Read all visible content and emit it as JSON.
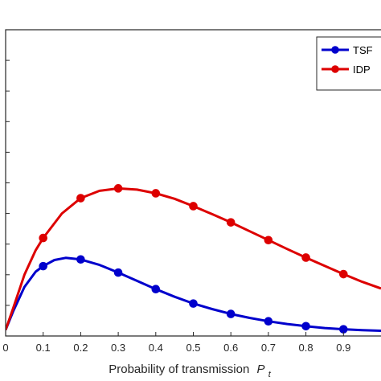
{
  "chart_data": {
    "type": "line",
    "title": "",
    "xlabel": "Probability of transmission",
    "xlabel_symbol": "P",
    "xlabel_subscript": "t",
    "ylabel": "",
    "xlim": [
      0,
      1
    ],
    "ylim": [
      0,
      1
    ],
    "x_ticks": [
      0,
      0.1,
      0.2,
      0.3,
      0.4,
      0.5,
      0.6,
      0.7,
      0.8,
      0.9
    ],
    "x_tick_labels": [
      "0",
      "0.1",
      "0.2",
      "0.3",
      "0.4",
      "0.5",
      "0.6",
      "0.7",
      "0.8",
      "0.9"
    ],
    "y_ticks": [
      0,
      0.1,
      0.2,
      0.3,
      0.4,
      0.5,
      0.6,
      0.7,
      0.8,
      0.9
    ],
    "grid": false,
    "legend_position": "top-right",
    "series": [
      {
        "name": "TSF",
        "color": "#0000cc",
        "marker": "circle",
        "curve": [
          [
            0,
            0.02
          ],
          [
            0.02,
            0.08
          ],
          [
            0.05,
            0.16
          ],
          [
            0.08,
            0.21
          ],
          [
            0.1,
            0.228
          ],
          [
            0.13,
            0.248
          ],
          [
            0.16,
            0.255
          ],
          [
            0.2,
            0.25
          ],
          [
            0.25,
            0.232
          ],
          [
            0.3,
            0.207
          ],
          [
            0.35,
            0.18
          ],
          [
            0.4,
            0.153
          ],
          [
            0.45,
            0.128
          ],
          [
            0.5,
            0.106
          ],
          [
            0.55,
            0.088
          ],
          [
            0.6,
            0.072
          ],
          [
            0.65,
            0.059
          ],
          [
            0.7,
            0.048
          ],
          [
            0.75,
            0.039
          ],
          [
            0.8,
            0.032
          ],
          [
            0.85,
            0.026
          ],
          [
            0.9,
            0.022
          ],
          [
            0.95,
            0.019
          ],
          [
            1.0,
            0.017
          ]
        ],
        "markers": [
          [
            0.1,
            0.228
          ],
          [
            0.2,
            0.25
          ],
          [
            0.3,
            0.207
          ],
          [
            0.4,
            0.153
          ],
          [
            0.5,
            0.106
          ],
          [
            0.6,
            0.072
          ],
          [
            0.7,
            0.048
          ],
          [
            0.8,
            0.032
          ],
          [
            0.9,
            0.022
          ]
        ]
      },
      {
        "name": "IDP",
        "color": "#dd0000",
        "marker": "circle",
        "curve": [
          [
            0,
            0.02
          ],
          [
            0.02,
            0.09
          ],
          [
            0.05,
            0.2
          ],
          [
            0.08,
            0.28
          ],
          [
            0.1,
            0.32
          ],
          [
            0.15,
            0.4
          ],
          [
            0.2,
            0.45
          ],
          [
            0.25,
            0.474
          ],
          [
            0.3,
            0.482
          ],
          [
            0.35,
            0.478
          ],
          [
            0.4,
            0.466
          ],
          [
            0.45,
            0.448
          ],
          [
            0.5,
            0.424
          ],
          [
            0.55,
            0.398
          ],
          [
            0.6,
            0.371
          ],
          [
            0.65,
            0.342
          ],
          [
            0.7,
            0.313
          ],
          [
            0.75,
            0.284
          ],
          [
            0.8,
            0.256
          ],
          [
            0.85,
            0.229
          ],
          [
            0.9,
            0.202
          ],
          [
            0.95,
            0.177
          ],
          [
            1.0,
            0.155
          ]
        ],
        "markers": [
          [
            0.1,
            0.32
          ],
          [
            0.2,
            0.45
          ],
          [
            0.3,
            0.482
          ],
          [
            0.4,
            0.466
          ],
          [
            0.5,
            0.424
          ],
          [
            0.6,
            0.371
          ],
          [
            0.7,
            0.313
          ],
          [
            0.8,
            0.256
          ],
          [
            0.9,
            0.202
          ]
        ]
      }
    ]
  }
}
